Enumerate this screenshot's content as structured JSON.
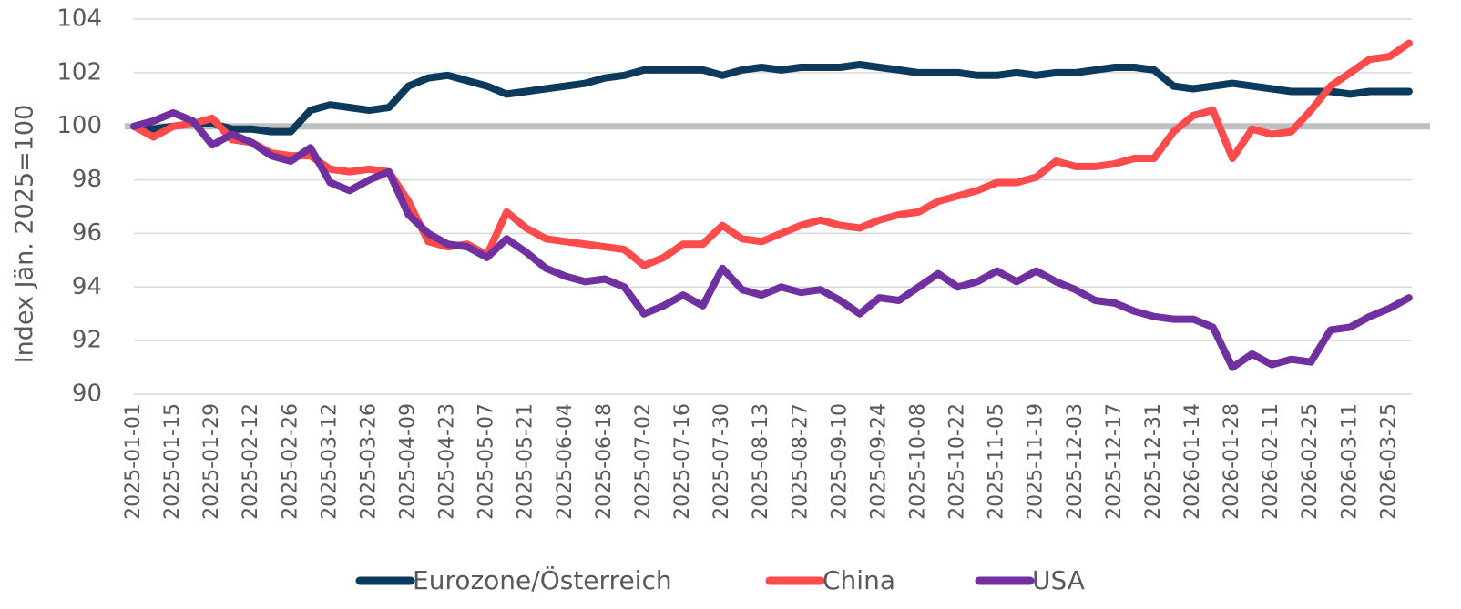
{
  "chart_data": {
    "type": "line",
    "y_label": "Index Jän. 2025=100",
    "x": [
      "2025-01-01",
      "2025-01-08",
      "2025-01-15",
      "2025-01-22",
      "2025-01-29",
      "2025-02-05",
      "2025-02-12",
      "2025-02-19",
      "2025-02-26",
      "2025-03-05",
      "2025-03-12",
      "2025-03-19",
      "2025-03-26",
      "2025-04-02",
      "2025-04-09",
      "2025-04-16",
      "2025-04-23",
      "2025-04-30",
      "2025-05-07",
      "2025-05-14",
      "2025-05-21",
      "2025-05-28",
      "2025-06-04",
      "2025-06-11",
      "2025-06-18",
      "2025-06-25",
      "2025-07-02",
      "2025-07-09",
      "2025-07-16",
      "2025-07-23",
      "2025-07-30",
      "2025-08-06",
      "2025-08-13",
      "2025-08-20",
      "2025-08-27",
      "2025-09-03",
      "2025-09-10",
      "2025-09-17",
      "2025-09-24",
      "2025-10-01",
      "2025-10-08",
      "2025-10-15",
      "2025-10-22",
      "2025-10-29",
      "2025-11-05",
      "2025-11-12",
      "2025-11-19",
      "2025-11-26",
      "2025-12-03",
      "2025-12-10",
      "2025-12-17",
      "2025-12-24",
      "2025-12-31",
      "2026-01-07",
      "2026-01-14",
      "2026-01-21",
      "2026-01-28",
      "2026-02-04",
      "2026-02-11",
      "2026-02-18",
      "2026-02-25",
      "2026-03-04",
      "2026-03-11",
      "2026-03-18",
      "2026-03-25",
      "2026-04-01"
    ],
    "series": [
      {
        "name": "Eurozone/Österreich",
        "color": "#0b3a5c",
        "values": [
          100,
          99.9,
          100,
          100.1,
          100.1,
          99.9,
          99.9,
          99.8,
          99.8,
          100.6,
          100.8,
          100.7,
          100.6,
          100.7,
          101.5,
          101.8,
          101.9,
          101.7,
          101.5,
          101.2,
          101.3,
          101.4,
          101.5,
          101.6,
          101.8,
          101.9,
          102.1,
          102.1,
          102.1,
          102.1,
          101.9,
          102.1,
          102.2,
          102.1,
          102.2,
          102.2,
          102.2,
          102.3,
          102.2,
          102.1,
          102.0,
          102.0,
          102.0,
          101.9,
          101.9,
          102.0,
          101.9,
          102.0,
          102.0,
          102.1,
          102.2,
          102.2,
          102.1,
          101.5,
          101.4,
          101.5,
          101.6,
          101.5,
          101.4,
          101.3,
          101.3,
          101.3,
          101.2,
          101.3,
          101.3,
          101.3
        ]
      },
      {
        "name": "China",
        "color": "#ff4b4b",
        "values": [
          100,
          99.6,
          100,
          100.1,
          100.3,
          99.5,
          99.4,
          99.0,
          98.9,
          98.9,
          98.4,
          98.3,
          98.4,
          98.3,
          97.2,
          95.7,
          95.5,
          95.6,
          95.2,
          96.8,
          96.2,
          95.8,
          95.7,
          95.6,
          95.5,
          95.4,
          94.8,
          95.1,
          95.6,
          95.6,
          96.3,
          95.8,
          95.7,
          96.0,
          96.3,
          96.5,
          96.3,
          96.2,
          96.5,
          96.7,
          96.8,
          97.2,
          97.4,
          97.6,
          97.9,
          97.9,
          98.1,
          98.7,
          98.5,
          98.5,
          98.6,
          98.8,
          98.8,
          99.8,
          100.4,
          100.6,
          98.8,
          99.9,
          99.7,
          99.8,
          100.6,
          101.5,
          102.0,
          102.5,
          102.6,
          103.1
        ]
      },
      {
        "name": "USA",
        "color": "#7030a0",
        "values": [
          100,
          100.2,
          100.5,
          100.2,
          99.3,
          99.7,
          99.4,
          98.9,
          98.7,
          99.2,
          97.9,
          97.6,
          98.0,
          98.3,
          96.7,
          96.0,
          95.6,
          95.5,
          95.1,
          95.8,
          95.3,
          94.7,
          94.4,
          94.2,
          94.3,
          94.0,
          93.0,
          93.3,
          93.7,
          93.3,
          94.7,
          93.9,
          93.7,
          94.0,
          93.8,
          93.9,
          93.5,
          93.0,
          93.6,
          93.5,
          94.0,
          94.5,
          94.0,
          94.2,
          94.6,
          94.2,
          94.6,
          94.2,
          93.9,
          93.5,
          93.4,
          93.1,
          92.9,
          92.8,
          92.8,
          92.5,
          91.0,
          91.5,
          91.1,
          91.3,
          91.2,
          92.4,
          92.5,
          92.9,
          93.2,
          93.6
        ]
      }
    ],
    "reference_line": {
      "value": 100,
      "color": "#bfbfbf"
    },
    "xlim": [
      "2025-01-01",
      "2026-04-02"
    ],
    "xticks": [
      "2025-01-01",
      "2025-01-15",
      "2025-01-29",
      "2025-02-12",
      "2025-02-26",
      "2025-03-12",
      "2025-03-26",
      "2025-04-09",
      "2025-04-23",
      "2025-05-07",
      "2025-05-21",
      "2025-06-04",
      "2025-06-18",
      "2025-07-02",
      "2025-07-16",
      "2025-07-30",
      "2025-08-13",
      "2025-08-27",
      "2025-09-10",
      "2025-09-24",
      "2025-10-08",
      "2025-10-22",
      "2025-11-05",
      "2025-11-19",
      "2025-12-03",
      "2025-12-17",
      "2025-12-31",
      "2026-01-14",
      "2026-01-28",
      "2026-02-11",
      "2026-02-25",
      "2026-03-11",
      "2026-03-25"
    ],
    "ylim": [
      90,
      104
    ],
    "yticks": [
      90,
      92,
      94,
      96,
      98,
      100,
      102,
      104
    ],
    "grid": true,
    "legend": "bottom"
  }
}
